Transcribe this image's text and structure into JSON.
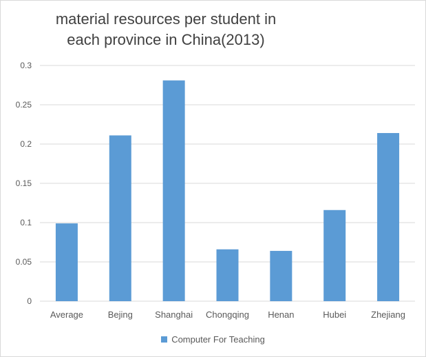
{
  "chart_data": {
    "type": "bar",
    "title": "material resources per student in\neach province in China(2013)",
    "categories": [
      "Average",
      "Bejing",
      "Shanghai",
      "Chongqing",
      "Henan",
      "Hubei",
      "Zhejiang"
    ],
    "series": [
      {
        "name": "Computer For Teaching",
        "values": [
          0.099,
          0.211,
          0.281,
          0.066,
          0.064,
          0.116,
          0.214
        ]
      }
    ],
    "ylim": [
      0,
      0.3
    ],
    "yticks": [
      0,
      0.05,
      0.1,
      0.15,
      0.2,
      0.25,
      0.3
    ],
    "ytick_labels": [
      "0",
      "0.05",
      "0.1",
      "0.15",
      "0.2",
      "0.25",
      "0.3"
    ],
    "grid": true,
    "legend_position": "bottom",
    "colors": {
      "bar": "#5b9bd5",
      "grid": "#d9d9d9",
      "tick_text": "#595959"
    }
  }
}
